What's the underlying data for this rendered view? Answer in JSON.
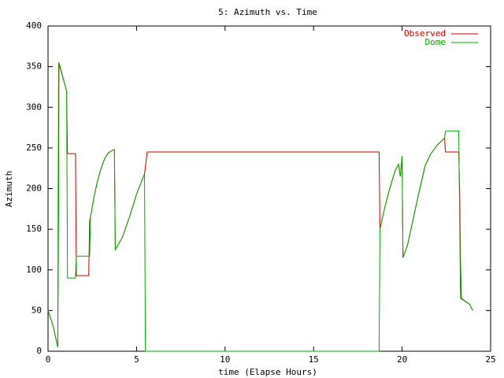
{
  "chart_data": {
    "type": "line",
    "title": "5: Azimuth vs. Time",
    "x_label": "time (Elapse Hours)",
    "y_label": "Azimuth",
    "xlim": [
      0,
      25
    ],
    "xticks": [
      0,
      5,
      10,
      15,
      20,
      25
    ],
    "ylim": [
      0,
      400
    ],
    "yticks": [
      0,
      50,
      100,
      150,
      200,
      250,
      300,
      350,
      400
    ],
    "grid": false,
    "legend": "top-right",
    "series": [
      {
        "name": "Observed",
        "color": "#cc0000",
        "x": [
          0,
          0.3,
          0.55,
          0.6,
          1.05,
          1.06,
          1.1,
          1.55,
          1.6,
          2.3,
          2.35,
          2.4,
          2.6,
          2.8,
          3.0,
          3.2,
          3.4,
          3.7,
          3.75,
          3.8,
          4.2,
          4.6,
          5.0,
          5.3,
          5.45,
          5.6,
          18.7,
          18.75,
          19.0,
          19.3,
          19.6,
          19.8,
          19.9,
          20.0,
          20.05,
          20.3,
          20.6,
          21.0,
          21.3,
          21.6,
          22.0,
          22.4,
          22.45,
          23.2,
          23.25,
          23.3,
          23.35,
          23.8,
          24.0
        ],
        "values": [
          50,
          30,
          5,
          355,
          320,
          300,
          243,
          243,
          93,
          93,
          160,
          165,
          190,
          210,
          225,
          237,
          244,
          248,
          248,
          125,
          140,
          165,
          193,
          210,
          218,
          245,
          245,
          150,
          175,
          200,
          222,
          230,
          215,
          240,
          115,
          130,
          160,
          200,
          228,
          242,
          254,
          262,
          245,
          245,
          200,
          110,
          65,
          58,
          50
        ]
      },
      {
        "name": "Dome",
        "color": "#00aa00",
        "x": [
          0,
          0.3,
          0.55,
          0.6,
          0.62,
          1.05,
          1.1,
          1.55,
          1.6,
          2.35,
          2.4,
          2.6,
          2.8,
          3.0,
          3.2,
          3.4,
          3.7,
          3.75,
          3.8,
          4.2,
          4.6,
          5.0,
          5.3,
          5.45,
          5.5,
          18.7,
          18.75,
          19.0,
          19.3,
          19.6,
          19.8,
          19.9,
          20.0,
          20.05,
          20.3,
          20.6,
          21.0,
          21.3,
          21.6,
          22.0,
          22.4,
          22.45,
          23.2,
          23.3,
          23.8,
          24.0
        ],
        "values": [
          50,
          30,
          5,
          180,
          355,
          320,
          90,
          90,
          117,
          117,
          165,
          190,
          210,
          225,
          237,
          244,
          248,
          248,
          125,
          140,
          165,
          193,
          210,
          218,
          0,
          0,
          150,
          175,
          200,
          222,
          230,
          215,
          240,
          115,
          130,
          160,
          200,
          228,
          242,
          254,
          262,
          271,
          271,
          65,
          58,
          50
        ]
      }
    ]
  }
}
